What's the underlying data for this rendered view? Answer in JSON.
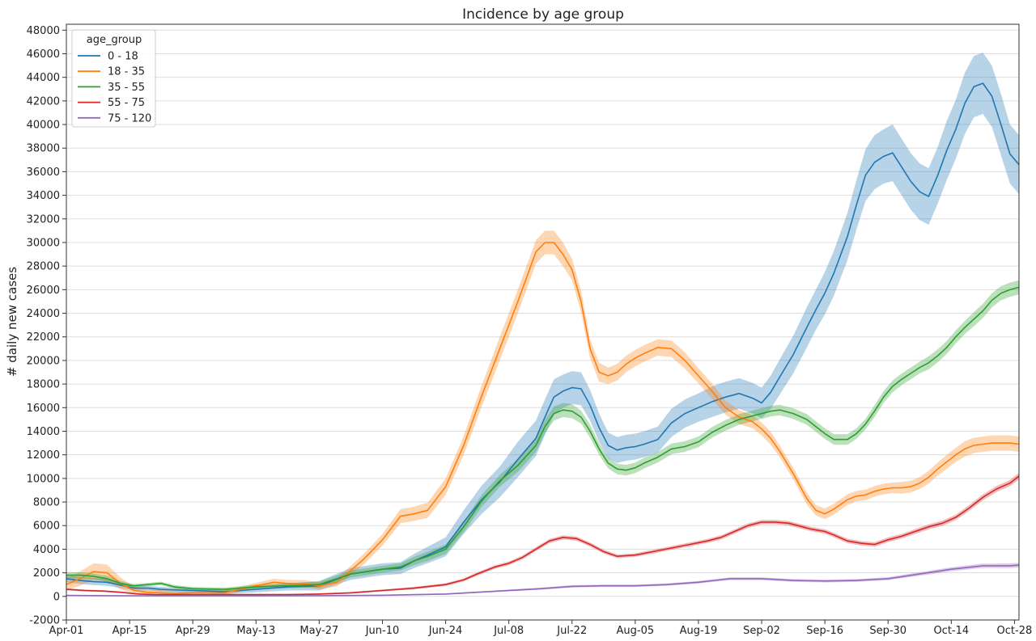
{
  "chart_data": {
    "type": "line",
    "title": "Incidence by age group",
    "xlabel": "",
    "ylabel": "# daily new cases",
    "ylim": [
      -2000,
      48500
    ],
    "yticks": [
      -2000,
      0,
      2000,
      4000,
      6000,
      8000,
      10000,
      12000,
      14000,
      16000,
      18000,
      20000,
      22000,
      24000,
      26000,
      28000,
      30000,
      32000,
      34000,
      36000,
      38000,
      40000,
      42000,
      44000,
      46000,
      48000
    ],
    "x_tick_labels": [
      "Apr-01",
      "Apr-15",
      "Apr-29",
      "May-13",
      "May-27",
      "Jun-10",
      "Jun-24",
      "Jul-08",
      "Jul-22",
      "Aug-05",
      "Aug-19",
      "Sep-02",
      "Sep-16",
      "Sep-30",
      "Oct-14",
      "Oct-28"
    ],
    "x_tick_days": [
      0,
      14,
      28,
      42,
      56,
      70,
      84,
      98,
      112,
      126,
      140,
      154,
      168,
      182,
      196,
      210
    ],
    "x_range_days": [
      0,
      211
    ],
    "grid": "horizontal",
    "legend_title": "age_group",
    "legend_position": "top-left",
    "bands": "confidence band around each series",
    "series": [
      {
        "name": "0 - 18",
        "color": "#1f77b4",
        "x": [
          0,
          3,
          6,
          9,
          12,
          15,
          18,
          21,
          24,
          28,
          35,
          42,
          49,
          56,
          63,
          70,
          74,
          77,
          80,
          84,
          88,
          92,
          96,
          100,
          104,
          106,
          108,
          110,
          112,
          114,
          116,
          118,
          120,
          122,
          124,
          126,
          128,
          131,
          134,
          137,
          140,
          143,
          146,
          149,
          152,
          154,
          156,
          158,
          161,
          164,
          166,
          168,
          170,
          173,
          175,
          177,
          179,
          181,
          183,
          185,
          187,
          189,
          191,
          193,
          195,
          197,
          199,
          201,
          203,
          205,
          207,
          209,
          211
        ],
        "y": [
          1500,
          1350,
          1250,
          1200,
          950,
          700,
          700,
          600,
          550,
          500,
          400,
          600,
          800,
          900,
          1900,
          2300,
          2400,
          3000,
          3500,
          4200,
          6300,
          8200,
          9700,
          11600,
          13400,
          15200,
          16900,
          17400,
          17700,
          17600,
          16200,
          14300,
          12800,
          12400,
          12600,
          12700,
          12900,
          13300,
          14700,
          15500,
          16000,
          16500,
          16900,
          17200,
          16800,
          16400,
          17300,
          18600,
          20500,
          22800,
          24300,
          25700,
          27400,
          30500,
          33200,
          35700,
          36800,
          37300,
          37600,
          36400,
          35200,
          34300,
          33900,
          35700,
          37800,
          39600,
          41800,
          43200,
          43500,
          42400,
          40000,
          37500,
          36600
        ],
        "band": [
          300,
          300,
          300,
          300,
          250,
          200,
          200,
          200,
          200,
          200,
          200,
          250,
          300,
          400,
          500,
          500,
          500,
          600,
          700,
          800,
          1000,
          1200,
          1300,
          1500,
          1500,
          1500,
          1500,
          1400,
          1400,
          1400,
          1300,
          1200,
          1100,
          1100,
          1100,
          1100,
          1100,
          1100,
          1200,
          1200,
          1200,
          1300,
          1300,
          1300,
          1300,
          1300,
          1400,
          1500,
          1600,
          1700,
          1700,
          1800,
          1900,
          2000,
          2100,
          2200,
          2300,
          2300,
          2400,
          2400,
          2400,
          2400,
          2400,
          2400,
          2500,
          2500,
          2600,
          2600,
          2600,
          2600,
          2600,
          2500,
          2500
        ]
      },
      {
        "name": "18 - 35",
        "color": "#ff7f0e",
        "x": [
          0,
          3,
          6,
          9,
          12,
          15,
          18,
          21,
          24,
          28,
          35,
          42,
          46,
          49,
          52,
          56,
          60,
          63,
          66,
          70,
          74,
          77,
          80,
          84,
          88,
          92,
          96,
          100,
          104,
          106,
          108,
          110,
          112,
          114,
          116,
          118,
          120,
          122,
          124,
          126,
          128,
          131,
          134,
          137,
          140,
          143,
          146,
          149,
          152,
          154,
          156,
          158,
          161,
          164,
          166,
          168,
          170,
          173,
          175,
          177,
          179,
          181,
          183,
          185,
          187,
          189,
          191,
          193,
          195,
          197,
          199,
          201,
          203,
          205,
          207,
          209,
          211
        ],
        "y": [
          1000,
          1500,
          2100,
          2000,
          1100,
          500,
          350,
          300,
          250,
          300,
          300,
          900,
          1200,
          1100,
          1100,
          900,
          1200,
          2200,
          3200,
          4800,
          6800,
          7000,
          7300,
          9300,
          12800,
          17000,
          21000,
          25000,
          29200,
          30000,
          30000,
          29000,
          27700,
          25000,
          21000,
          19000,
          18700,
          19000,
          19700,
          20200,
          20600,
          21100,
          21000,
          20000,
          18700,
          17400,
          16000,
          15200,
          14800,
          14200,
          13400,
          12300,
          10400,
          8300,
          7300,
          7000,
          7400,
          8200,
          8500,
          8600,
          8900,
          9100,
          9200,
          9200,
          9300,
          9600,
          10100,
          10800,
          11400,
          12000,
          12500,
          12800,
          12900,
          13000,
          13000,
          13000,
          12900
        ],
        "band": [
          500,
          600,
          700,
          700,
          500,
          300,
          250,
          250,
          200,
          200,
          200,
          250,
          300,
          300,
          300,
          300,
          350,
          400,
          450,
          500,
          600,
          600,
          650,
          700,
          800,
          900,
          1000,
          1000,
          1000,
          1000,
          1000,
          1000,
          900,
          900,
          800,
          800,
          700,
          700,
          700,
          700,
          700,
          700,
          700,
          700,
          650,
          650,
          600,
          600,
          550,
          550,
          550,
          500,
          500,
          500,
          450,
          450,
          450,
          450,
          450,
          450,
          450,
          450,
          450,
          500,
          500,
          500,
          550,
          550,
          600,
          600,
          650,
          650,
          650,
          650,
          650,
          650,
          650
        ]
      },
      {
        "name": "35 - 55",
        "color": "#2ca02c",
        "x": [
          0,
          3,
          6,
          9,
          12,
          15,
          18,
          21,
          24,
          28,
          35,
          42,
          49,
          56,
          63,
          70,
          74,
          77,
          80,
          84,
          88,
          92,
          96,
          100,
          104,
          106,
          108,
          110,
          112,
          114,
          116,
          118,
          120,
          122,
          124,
          126,
          128,
          131,
          134,
          137,
          140,
          143,
          146,
          149,
          152,
          154,
          156,
          158,
          161,
          164,
          166,
          168,
          170,
          173,
          175,
          177,
          179,
          181,
          183,
          185,
          187,
          189,
          191,
          193,
          195,
          197,
          199,
          201,
          203,
          205,
          207,
          209,
          211
        ],
        "y": [
          1800,
          1800,
          1700,
          1500,
          1100,
          900,
          1000,
          1100,
          800,
          650,
          600,
          800,
          900,
          1000,
          1900,
          2300,
          2500,
          3000,
          3400,
          4000,
          5900,
          8100,
          9800,
          11100,
          12800,
          14400,
          15500,
          15800,
          15700,
          15200,
          14000,
          12500,
          11300,
          10800,
          10700,
          10900,
          11300,
          11800,
          12500,
          12700,
          13100,
          13900,
          14500,
          15000,
          15300,
          15500,
          15700,
          15800,
          15500,
          15000,
          14400,
          13800,
          13300,
          13300,
          13800,
          14600,
          15700,
          16900,
          17800,
          18400,
          18900,
          19400,
          19800,
          20400,
          21100,
          22000,
          22800,
          23500,
          24200,
          25100,
          25700,
          26000,
          26200
        ],
        "band": [
          250,
          250,
          250,
          250,
          200,
          150,
          150,
          150,
          150,
          150,
          150,
          200,
          200,
          250,
          300,
          300,
          300,
          350,
          400,
          400,
          450,
          500,
          500,
          550,
          550,
          600,
          600,
          600,
          600,
          550,
          550,
          500,
          450,
          450,
          450,
          450,
          450,
          450,
          450,
          450,
          450,
          450,
          450,
          450,
          450,
          450,
          450,
          450,
          450,
          450,
          450,
          450,
          450,
          450,
          450,
          450,
          500,
          500,
          500,
          500,
          500,
          500,
          550,
          550,
          550,
          550,
          550,
          600,
          600,
          600,
          600,
          600,
          600
        ]
      },
      {
        "name": "55 - 75",
        "color": "#d62728",
        "x": [
          0,
          4,
          8,
          12,
          16,
          20,
          24,
          28,
          35,
          42,
          49,
          56,
          63,
          70,
          77,
          84,
          88,
          91,
          95,
          98,
          101,
          104,
          107,
          110,
          113,
          116,
          119,
          122,
          126,
          130,
          134,
          138,
          142,
          145,
          148,
          151,
          154,
          157,
          160,
          163,
          165,
          168,
          170,
          173,
          176,
          179,
          182,
          185,
          188,
          191,
          194,
          197,
          200,
          203,
          206,
          209,
          211
        ],
        "y": [
          600,
          500,
          450,
          350,
          200,
          150,
          150,
          150,
          150,
          150,
          150,
          200,
          300,
          500,
          700,
          1000,
          1400,
          1900,
          2500,
          2800,
          3300,
          4000,
          4700,
          5000,
          4900,
          4400,
          3800,
          3400,
          3500,
          3800,
          4100,
          4400,
          4700,
          5000,
          5500,
          6000,
          6300,
          6300,
          6200,
          5900,
          5700,
          5500,
          5200,
          4700,
          4500,
          4400,
          4800,
          5100,
          5500,
          5900,
          6200,
          6700,
          7500,
          8400,
          9100,
          9600,
          10200
        ],
        "band": [
          80,
          80,
          80,
          60,
          50,
          50,
          50,
          50,
          50,
          50,
          50,
          60,
          70,
          90,
          100,
          120,
          130,
          140,
          150,
          160,
          160,
          170,
          180,
          180,
          180,
          170,
          160,
          150,
          150,
          160,
          160,
          170,
          170,
          180,
          180,
          190,
          190,
          190,
          190,
          190,
          190,
          190,
          190,
          190,
          190,
          190,
          200,
          200,
          210,
          210,
          220,
          230,
          240,
          250,
          260,
          270,
          280
        ]
      },
      {
        "name": "75 - 120",
        "color": "#9467bd",
        "x": [
          0,
          14,
          28,
          42,
          56,
          70,
          84,
          91,
          98,
          105,
          112,
          119,
          126,
          133,
          140,
          147,
          154,
          161,
          168,
          175,
          182,
          189,
          196,
          203,
          206,
          209,
          211
        ],
        "y": [
          80,
          50,
          50,
          50,
          60,
          100,
          200,
          350,
          500,
          650,
          850,
          900,
          900,
          1000,
          1200,
          1500,
          1500,
          1350,
          1300,
          1350,
          1500,
          1900,
          2300,
          2600,
          2600,
          2600,
          2650
        ],
        "band": [
          40,
          40,
          40,
          40,
          40,
          50,
          60,
          70,
          80,
          90,
          100,
          100,
          100,
          100,
          110,
          120,
          120,
          120,
          120,
          120,
          130,
          150,
          170,
          190,
          190,
          200,
          200
        ]
      }
    ]
  }
}
